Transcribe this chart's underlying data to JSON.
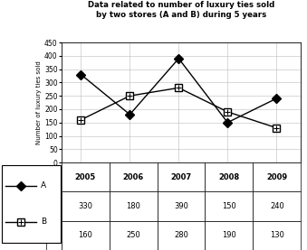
{
  "title_line1": "Data related to number of luxury ties sold",
  "title_line2": "by two stores (A and B) during 5 years",
  "years": [
    2005,
    2006,
    2007,
    2008,
    2009
  ],
  "store_A": [
    330,
    180,
    390,
    150,
    240
  ],
  "store_B": [
    160,
    250,
    280,
    190,
    130
  ],
  "ylabel": "Number of luxury ties sold",
  "ylim": [
    0,
    450
  ],
  "yticks": [
    0,
    50,
    100,
    150,
    200,
    250,
    300,
    350,
    400,
    450
  ],
  "color_A": "#000000",
  "color_B": "#000000",
  "bg_color": "#ffffff",
  "table_header": [
    "2005",
    "2006",
    "2007",
    "2008",
    "2009"
  ],
  "table_A": [
    "330",
    "180",
    "390",
    "150",
    "240"
  ],
  "table_B": [
    "160",
    "250",
    "280",
    "190",
    "130"
  ]
}
